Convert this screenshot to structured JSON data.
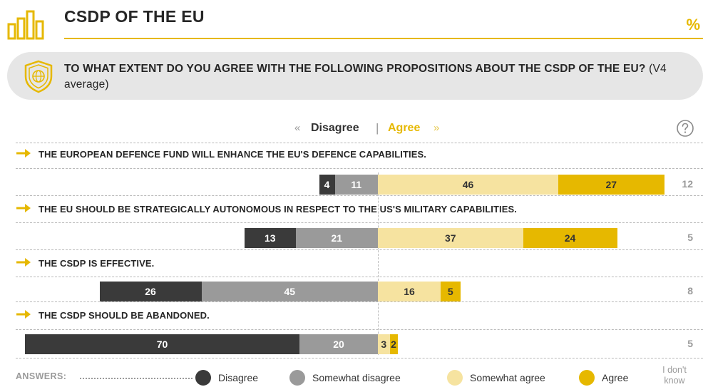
{
  "header": {
    "title": "CSDP OF THE EU",
    "percent_sign": "%"
  },
  "question": {
    "text": "TO WHAT EXTENT DO YOU AGREE WITH THE FOLLOWING PROPOSITIONS ABOUT THE CSDP OF THE EU?",
    "note": "(V4 average)"
  },
  "direction_legend": {
    "left_arrows": "«",
    "disagree": "Disagree",
    "separator": "|",
    "agree": "Agree",
    "right_arrows": "»"
  },
  "help_icon": "question-mark-circle-icon",
  "colors": {
    "disagree": "#3a3a3a",
    "somewhat_disagree": "#9a9a9a",
    "somewhat_agree": "#f6e3a0",
    "agree": "#e6b800"
  },
  "chart_data": {
    "type": "bar",
    "orientation": "horizontal-diverging-stacked",
    "unit": "%",
    "categories": [
      "THE EUROPEAN DEFENCE FUND WILL ENHANCE THE EU'S DEFENCE CAPABILITIES.",
      "THE EU SHOULD BE STRATEGICALLY AUTONOMOUS IN RESPECT TO THE US'S MILITARY CAPABILITIES.",
      "THE CSDP IS EFFECTIVE.",
      "THE CSDP SHOULD BE ABANDONED."
    ],
    "series": [
      {
        "name": "Disagree",
        "values": [
          4,
          13,
          26,
          70
        ]
      },
      {
        "name": "Somewhat disagree",
        "values": [
          11,
          21,
          45,
          20
        ]
      },
      {
        "name": "Somewhat agree",
        "values": [
          46,
          37,
          16,
          3
        ]
      },
      {
        "name": "Agree",
        "values": [
          27,
          24,
          5,
          2
        ]
      },
      {
        "name": "I don't know",
        "values": [
          12,
          5,
          8,
          5
        ]
      }
    ],
    "legend_position": "bottom"
  },
  "legend": {
    "answers_label": "ANSWERS:",
    "items": [
      "Disagree",
      "Somewhat disagree",
      "Somewhat agree",
      "Agree"
    ],
    "dont_know": "I don't know"
  }
}
